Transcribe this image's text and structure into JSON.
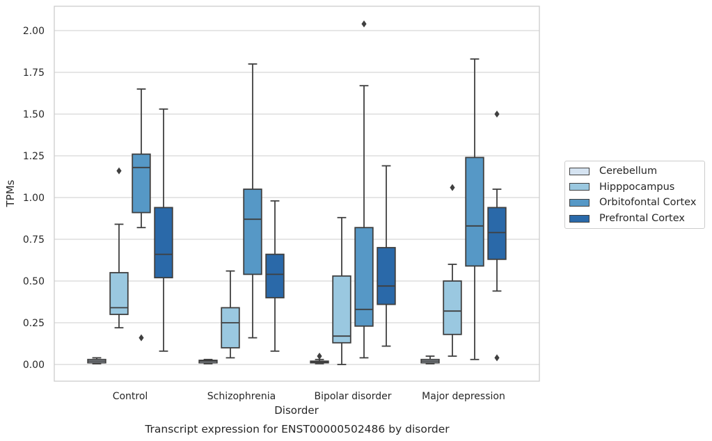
{
  "chart_data": {
    "type": "box",
    "title": "Transcript expression for ENST00000502486 by disorder",
    "xlabel": "Disorder",
    "ylabel": "TPMs",
    "ylim": [
      -0.1,
      2.15
    ],
    "yticks": [
      0.0,
      0.25,
      0.5,
      0.75,
      1.0,
      1.25,
      1.5,
      1.75,
      2.0
    ],
    "ytick_labels": [
      "0.00",
      "0.25",
      "0.50",
      "0.75",
      "1.00",
      "1.25",
      "1.50",
      "1.75",
      "2.00"
    ],
    "grid": true,
    "legend_position": "right",
    "categories": [
      "Control",
      "Schizophrenia",
      "Bipolar disorder",
      "Major depression"
    ],
    "series": [
      {
        "name": "Cerebellum",
        "color": "#d5e3f1",
        "boxes": [
          {
            "min": 0.005,
            "q1": 0.01,
            "median": 0.02,
            "q3": 0.03,
            "max": 0.04,
            "outliers": []
          },
          {
            "min": 0.005,
            "q1": 0.01,
            "median": 0.02,
            "q3": 0.025,
            "max": 0.03,
            "outliers": []
          },
          {
            "min": 0.005,
            "q1": 0.01,
            "median": 0.015,
            "q3": 0.02,
            "max": 0.03,
            "outliers": [
              0.05
            ]
          },
          {
            "min": 0.005,
            "q1": 0.01,
            "median": 0.02,
            "q3": 0.03,
            "max": 0.05,
            "outliers": []
          }
        ]
      },
      {
        "name": "Hipppocampus",
        "color": "#9ac8e0",
        "boxes": [
          {
            "min": 0.22,
            "q1": 0.3,
            "median": 0.34,
            "q3": 0.55,
            "max": 0.84,
            "outliers": [
              1.16
            ]
          },
          {
            "min": 0.04,
            "q1": 0.1,
            "median": 0.25,
            "q3": 0.34,
            "max": 0.56,
            "outliers": []
          },
          {
            "min": 0.0,
            "q1": 0.13,
            "median": 0.17,
            "q3": 0.53,
            "max": 0.88,
            "outliers": []
          },
          {
            "min": 0.05,
            "q1": 0.18,
            "median": 0.32,
            "q3": 0.5,
            "max": 0.6,
            "outliers": [
              1.06
            ]
          }
        ]
      },
      {
        "name": "Orbitofontal Cortex",
        "color": "#5698c6",
        "boxes": [
          {
            "min": 0.82,
            "q1": 0.91,
            "median": 1.18,
            "q3": 1.26,
            "max": 1.65,
            "outliers": [
              0.16
            ]
          },
          {
            "min": 0.16,
            "q1": 0.54,
            "median": 0.87,
            "q3": 1.05,
            "max": 1.8,
            "outliers": []
          },
          {
            "min": 0.04,
            "q1": 0.23,
            "median": 0.33,
            "q3": 0.82,
            "max": 1.67,
            "outliers": [
              2.04
            ]
          },
          {
            "min": 0.03,
            "q1": 0.59,
            "median": 0.83,
            "q3": 1.24,
            "max": 1.83,
            "outliers": []
          }
        ]
      },
      {
        "name": "Prefrontal Cortex",
        "color": "#2a69a9",
        "boxes": [
          {
            "min": 0.08,
            "q1": 0.52,
            "median": 0.66,
            "q3": 0.94,
            "max": 1.53,
            "outliers": []
          },
          {
            "min": 0.08,
            "q1": 0.4,
            "median": 0.54,
            "q3": 0.66,
            "max": 0.98,
            "outliers": []
          },
          {
            "min": 0.11,
            "q1": 0.36,
            "median": 0.47,
            "q3": 0.7,
            "max": 1.19,
            "outliers": []
          },
          {
            "min": 0.44,
            "q1": 0.63,
            "median": 0.79,
            "q3": 0.94,
            "max": 1.05,
            "outliers": [
              1.5,
              0.04
            ]
          }
        ]
      }
    ]
  }
}
